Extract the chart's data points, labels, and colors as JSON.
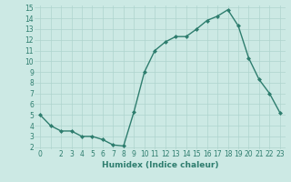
{
  "xlabel": "Humidex (Indice chaleur)",
  "ylabel": "",
  "x_values": [
    0,
    1,
    2,
    3,
    4,
    5,
    6,
    7,
    8,
    9,
    10,
    11,
    12,
    13,
    14,
    15,
    16,
    17,
    18,
    19,
    20,
    21,
    22,
    23
  ],
  "y_values": [
    5.0,
    4.0,
    3.5,
    3.5,
    3.0,
    3.0,
    2.7,
    2.2,
    2.1,
    5.3,
    9.0,
    11.0,
    11.8,
    12.3,
    12.3,
    13.0,
    13.8,
    14.2,
    14.8,
    13.3,
    10.3,
    8.3,
    7.0,
    5.2
  ],
  "line_color": "#2e7d6e",
  "marker": "D",
  "marker_size": 2.0,
  "bg_color": "#cce9e4",
  "grid_color": "#aed4ce",
  "tick_color": "#2e7d6e",
  "label_color": "#2e7d6e",
  "ylim": [
    2,
    15
  ],
  "xlim": [
    -0.5,
    23.5
  ],
  "yticks": [
    2,
    3,
    4,
    5,
    6,
    7,
    8,
    9,
    10,
    11,
    12,
    13,
    14,
    15
  ],
  "xtick_labels": [
    "0",
    "",
    "2",
    "3",
    "4",
    "5",
    "6",
    "7",
    "8",
    "9",
    "10",
    "11",
    "12",
    "13",
    "14",
    "15",
    "16",
    "17",
    "18",
    "19",
    "20",
    "21",
    "22",
    "23"
  ],
  "linewidth": 1.0,
  "axis_label_fontsize": 6.5,
  "tick_fontsize": 5.5
}
